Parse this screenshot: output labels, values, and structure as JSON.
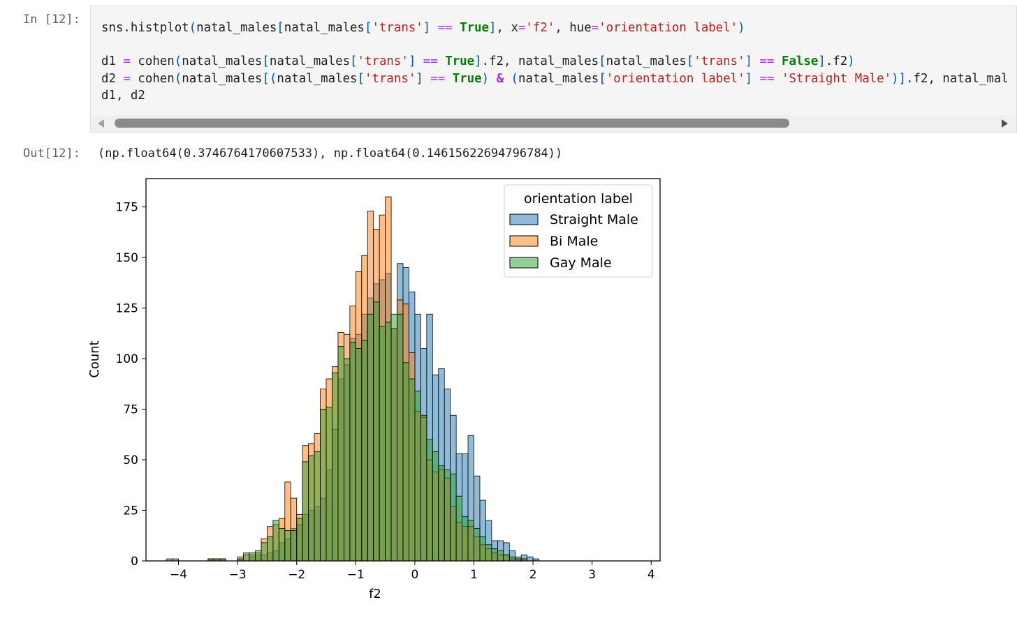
{
  "cell": {
    "in_prompt": "In [12]:",
    "out_prompt": "Out[12]:",
    "output_text": "(np.float64(0.3746764170607533), np.float64(0.14615622694796784))"
  },
  "code_lines": [
    "sns.histplot(natal_males[natal_males['trans'] == True], x='f2', hue='orientation label')",
    "",
    "d1 = cohen(natal_males[natal_males['trans'] == True].f2, natal_males[natal_males['trans'] == False].f2)",
    "d2 = cohen(natal_males[(natal_males['trans'] == True) & (natal_males['orientation label'] == 'Straight Male')].f2, natal_mal",
    "d1, d2"
  ],
  "chart_data": {
    "type": "bar",
    "xlabel": "f2",
    "ylabel": "Count",
    "xlim": [
      -4.55,
      4.15
    ],
    "ylim": [
      0,
      189
    ],
    "xticks": [
      -4,
      -3,
      -2,
      -1,
      0,
      1,
      2,
      3,
      4
    ],
    "yticks": [
      0,
      25,
      50,
      75,
      100,
      125,
      150,
      175
    ],
    "legend": {
      "title": "orientation label",
      "position": "top-right"
    },
    "bin_start": -4.2,
    "bin_width": 0.1,
    "series": [
      {
        "name": "Straight Male",
        "color": "#1f77b4",
        "values": [
          0,
          0,
          0,
          0,
          0,
          0,
          0,
          1,
          1,
          1,
          0,
          0,
          1,
          0,
          2,
          3,
          3,
          4,
          5,
          9,
          11,
          16,
          18,
          23,
          25,
          27,
          31,
          45,
          65,
          90,
          97,
          110,
          112,
          122,
          130,
          137,
          139,
          142,
          115,
          147,
          145,
          133,
          122,
          105,
          122,
          92,
          95,
          85,
          72,
          53,
          53,
          62,
          42,
          30,
          20,
          10,
          10,
          9,
          5,
          2,
          3,
          2,
          1,
          0
        ],
        "labels": [
          "",
          "",
          "",
          "",
          "",
          "",
          "",
          "",
          "",
          "",
          "",
          "",
          "",
          "",
          "",
          "",
          "",
          "",
          "",
          "",
          "",
          "",
          "",
          "",
          "",
          "",
          "",
          "",
          "",
          "",
          "",
          "",
          "",
          "",
          "",
          "",
          "",
          "",
          "",
          "",
          "",
          "",
          "",
          "",
          "",
          "",
          "",
          "",
          "",
          "",
          "",
          "",
          "",
          "",
          "",
          "",
          "",
          "",
          "",
          "",
          "",
          "",
          "",
          ""
        ]
      },
      {
        "name": "Bi Male",
        "color": "#ff7f0e",
        "values": [
          0,
          0,
          0,
          0,
          0,
          0,
          0,
          1,
          1,
          1,
          0,
          0,
          2,
          3,
          3,
          4,
          11,
          17,
          18,
          21,
          39,
          31,
          23,
          57,
          58,
          63,
          85,
          90,
          96,
          113,
          112,
          126,
          143,
          151,
          173,
          164,
          171,
          180,
          115,
          129,
          127,
          103,
          74,
          71,
          50,
          44,
          45,
          41,
          27,
          19,
          17,
          17,
          12,
          8,
          6,
          4,
          3,
          3,
          1,
          1,
          1,
          0,
          0,
          0
        ]
      },
      {
        "name": "Gay Male",
        "color": "#2ca02c",
        "values": [
          1,
          1,
          0,
          0,
          0,
          0,
          0,
          1,
          1,
          1,
          0,
          0,
          1,
          4,
          4,
          5,
          9,
          12,
          20,
          16,
          15,
          15,
          21,
          49,
          52,
          54,
          75,
          76,
          93,
          106,
          100,
          108,
          105,
          109,
          122,
          128,
          116,
          118,
          122,
          122,
          98,
          90,
          84,
          72,
          60,
          54,
          47,
          45,
          43,
          32,
          22,
          20,
          16,
          12,
          8,
          6,
          5,
          3,
          2,
          1,
          1,
          0,
          0,
          0
        ]
      }
    ]
  }
}
